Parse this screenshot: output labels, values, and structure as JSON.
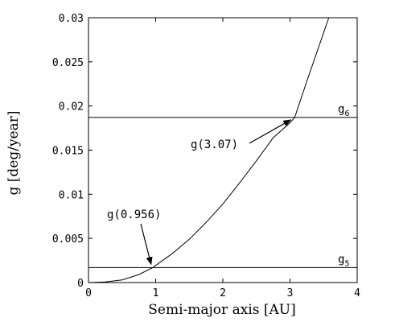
{
  "chart_data": {
    "type": "line",
    "xlabel": "Semi-major axis [AU]",
    "ylabel": "g [deg/year]",
    "xlim": [
      0,
      4
    ],
    "ylim": [
      0,
      0.03
    ],
    "x_ticks": [
      "0",
      "1",
      "2",
      "3",
      "4"
    ],
    "y_ticks": [
      "0",
      "0.005",
      "0.01",
      "0.015",
      "0.02",
      "0.025",
      "0.03"
    ],
    "grid": false,
    "series": [
      {
        "x": [
          0.0,
          0.25,
          0.5,
          0.75,
          0.956,
          1.25,
          1.5,
          1.75,
          2.0,
          2.25,
          2.5,
          2.75,
          3.0,
          3.07,
          3.25,
          3.5,
          3.6
        ],
        "y": [
          0.0,
          6e-05,
          0.0003,
          0.0009,
          0.0017,
          0.0033,
          0.0049,
          0.0068,
          0.0089,
          0.0113,
          0.0138,
          0.0164,
          0.0181,
          0.0187,
          0.0228,
          0.0283,
          0.0305
        ]
      }
    ],
    "hlines": [
      {
        "label": "g",
        "sub": "6",
        "y": 0.0187
      },
      {
        "label": "g",
        "sub": "5",
        "y": 0.0017
      }
    ],
    "annotations": [
      {
        "text": "g(0.956)",
        "x": 0.956,
        "y": 0.0017
      },
      {
        "text": "g(3.07)",
        "x": 3.07,
        "y": 0.0187
      }
    ]
  }
}
